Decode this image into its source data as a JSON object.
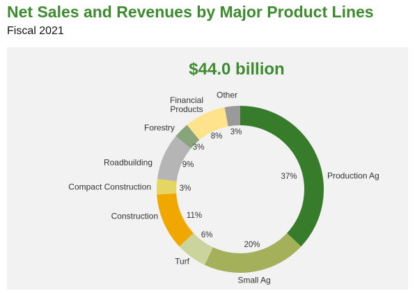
{
  "chart_data": {
    "type": "donut",
    "title": "Net Sales and Revenues by Major Product Lines",
    "subtitle": "Fiscal 2021",
    "center_label": "$44.0 billion",
    "categories": [
      "Production Ag",
      "Small Ag",
      "Turf",
      "Construction",
      "Compact Construction",
      "Roadbuilding",
      "Forestry",
      "Financial Products",
      "Other"
    ],
    "values": [
      37,
      20,
      6,
      11,
      3,
      9,
      3,
      8,
      3
    ],
    "value_labels": [
      "37%",
      "20%",
      "6%",
      "11%",
      "3%",
      "9%",
      "3%",
      "8%",
      "3%"
    ],
    "colors": [
      "#367c2b",
      "#a4b05a",
      "#cbd49c",
      "#f0a800",
      "#e4d661",
      "#b5b5b5",
      "#88a47a",
      "#ffe38c",
      "#9a9a9a"
    ]
  }
}
